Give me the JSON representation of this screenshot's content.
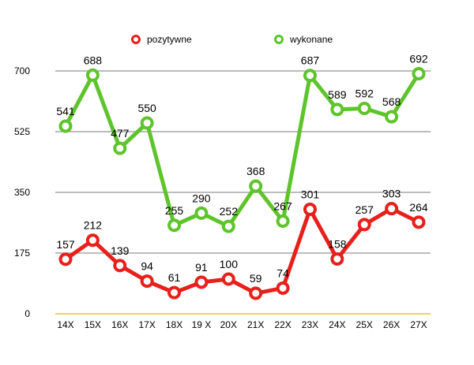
{
  "chart_data": {
    "type": "line",
    "categories": [
      "14X",
      "15X",
      "16X",
      "17X",
      "18X",
      "19 X",
      "20X",
      "21X",
      "22X",
      "23X",
      "24X",
      "25X",
      "26X",
      "27X"
    ],
    "series": [
      {
        "name": "pozytywne",
        "color": "#e8201c",
        "values": [
          157,
          212,
          139,
          94,
          61,
          91,
          100,
          59,
          74,
          301,
          158,
          257,
          303,
          264
        ]
      },
      {
        "name": "wykonane",
        "color": "#5ec42c",
        "values": [
          541,
          688,
          477,
          550,
          255,
          290,
          252,
          368,
          267,
          687,
          589,
          592,
          568,
          692
        ]
      }
    ],
    "yticks": [
      0,
      175,
      350,
      525,
      700
    ],
    "ylim": [
      0,
      700
    ],
    "grid": true,
    "legend_position": "top",
    "baseline_color": "#e6c619",
    "grid_color": "#a6a6a6"
  }
}
